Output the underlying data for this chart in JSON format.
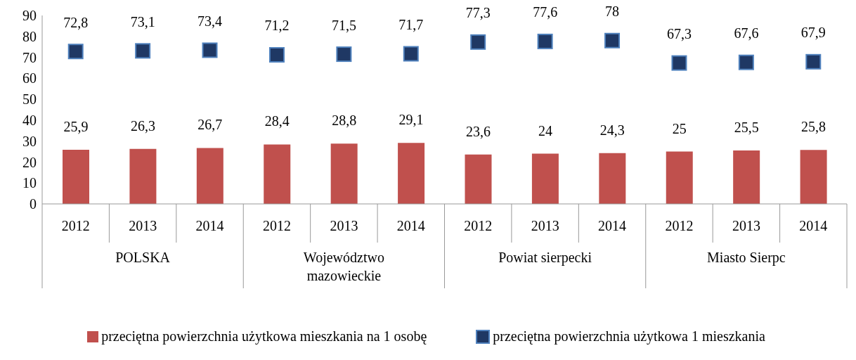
{
  "chart_data": {
    "type": "bar",
    "categories": [
      "2012",
      "2013",
      "2014",
      "2012",
      "2013",
      "2014",
      "2012",
      "2013",
      "2014",
      "2012",
      "2013",
      "2014"
    ],
    "annotations": [
      "POLSKA",
      "Województwo mazowieckie",
      "Powiat sierpecki",
      "Miasto Sierpc"
    ],
    "series": [
      {
        "name": "przeciętna powierzchnia użytkowa mieszkania na 1 osobę",
        "color": "#c0504d",
        "values": [
          25.9,
          26.3,
          26.7,
          28.4,
          28.8,
          29.1,
          23.6,
          24,
          24.3,
          25,
          25.5,
          25.8
        ],
        "value_labels": [
          "25,9",
          "26,3",
          "26,7",
          "28,4",
          "28,8",
          "29,1",
          "23,6",
          "24",
          "24,3",
          "25",
          "25,5",
          "25,8"
        ]
      },
      {
        "name": "przeciętna powierzchnia użytkowa 1 mieszkania",
        "type": "scatter",
        "color": "#1f3864",
        "marker": "square",
        "values": [
          72.8,
          73.1,
          73.4,
          71.2,
          71.5,
          71.7,
          77.3,
          77.6,
          78,
          67.3,
          67.6,
          67.9
        ],
        "value_labels": [
          "72,8",
          "73,1",
          "73,4",
          "71,2",
          "71,5",
          "71,7",
          "77,3",
          "77,6",
          "78",
          "67,3",
          "67,6",
          "67,9"
        ]
      }
    ],
    "ylim": [
      0,
      90
    ],
    "yticks": [
      0,
      10,
      20,
      30,
      40,
      50,
      60,
      70,
      80,
      90
    ],
    "grid": false,
    "legend": "bottom"
  }
}
